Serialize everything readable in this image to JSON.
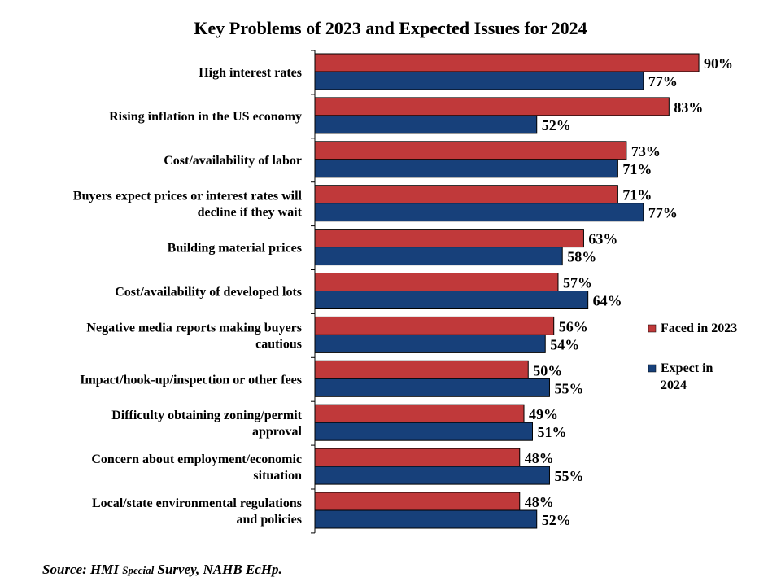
{
  "chart_data": {
    "type": "bar",
    "orientation": "horizontal",
    "title": "Key Problems of 2023 and Expected Issues for 2024",
    "categories": [
      [
        "High interest rates"
      ],
      [
        "Rising inflation in the US economy"
      ],
      [
        "Cost/availability of labor"
      ],
      [
        "Buyers expect prices or interest rates will",
        "decline if they wait"
      ],
      [
        "Building material prices"
      ],
      [
        "Cost/availability of developed lots"
      ],
      [
        "Negative media reports making buyers",
        "cautious"
      ],
      [
        "Impact/hook-up/inspection or other fees"
      ],
      [
        "Difficulty obtaining zoning/permit",
        "approval"
      ],
      [
        "Concern about employment/economic",
        "situation"
      ],
      [
        "Local/state environmental regulations",
        "and policies"
      ]
    ],
    "series": [
      {
        "name": "Faced in 2023",
        "legend_lines": [
          "Faced in 2023"
        ],
        "color": "#C0393A",
        "values": [
          90,
          83,
          73,
          71,
          63,
          57,
          56,
          50,
          49,
          48,
          48
        ]
      },
      {
        "name": "Expect in 2024",
        "legend_lines": [
          "Expect in",
          "2024"
        ],
        "color": "#17407A",
        "values": [
          77,
          52,
          71,
          77,
          58,
          64,
          54,
          55,
          51,
          55,
          52
        ]
      }
    ],
    "value_suffix": "%",
    "xlim": [
      0,
      100
    ],
    "grid": false,
    "legend_position": "right"
  },
  "source": {
    "prefix": "Source: HMI ",
    "small": "Special",
    "suffix": " Survey, NAHB EcHp."
  }
}
